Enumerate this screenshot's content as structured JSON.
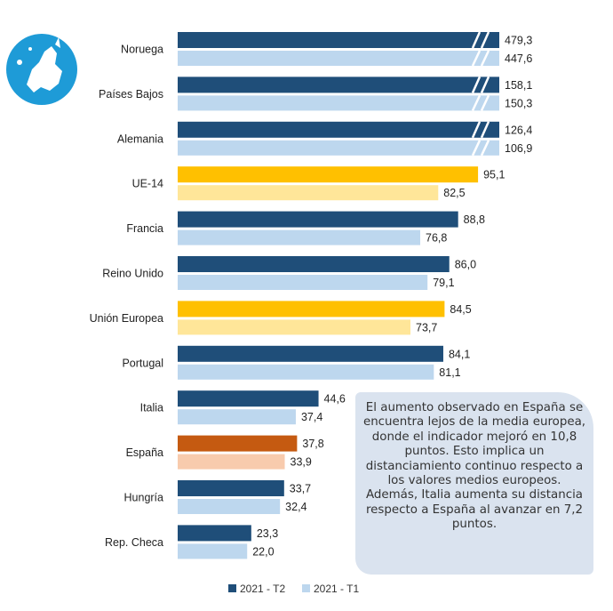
{
  "chart_data": {
    "type": "bar",
    "orientation": "horizontal",
    "categories": [
      "Noruega",
      "Países Bajos",
      "Alemania",
      "UE-14",
      "Francia",
      "Reino Unido",
      "Unión Europea",
      "Portugal",
      "Italia",
      "España",
      "Hungría",
      "Rep. Checa"
    ],
    "series": [
      {
        "name": "2021 - T2",
        "values": [
          479.3,
          158.1,
          126.4,
          95.1,
          88.8,
          86.0,
          84.5,
          84.1,
          44.6,
          37.8,
          33.7,
          23.3
        ],
        "labels": [
          "479,3",
          "158,1",
          "126,4",
          "95,1",
          "88,8",
          "86,0",
          "84,5",
          "84,1",
          "44,6",
          "37,8",
          "33,7",
          "23,3"
        ]
      },
      {
        "name": "2021 - T1",
        "values": [
          447.6,
          150.3,
          106.9,
          82.5,
          76.8,
          79.1,
          73.7,
          81.1,
          37.4,
          33.9,
          32.4,
          22.0
        ],
        "labels": [
          "447,6",
          "150,3",
          "106,9",
          "82,5",
          "76,8",
          "79,1",
          "73,7",
          "81,1",
          "37,4",
          "33,9",
          "32,4",
          "22,0"
        ]
      }
    ],
    "broken_axis_categories": [
      "Noruega",
      "Países Bajos",
      "Alemania"
    ],
    "legend": "bottom",
    "grid": false,
    "colors": {
      "t2": "#1f4e79",
      "t1": "#bdd7ee",
      "highlight_t2": "#ffc000",
      "highlight_t1": "#ffe699",
      "spain_t2": "#c55a11",
      "spain_t1": "#f8cbad"
    },
    "highlight_categories": [
      "UE-14",
      "Unión Europea"
    ],
    "spain_category": "España"
  },
  "note": "El aumento observado en España se encuentra lejos de la media europea, donde el indicador mejoró en 10,8 puntos. Esto implica un distanciamiento continuo respecto a los valores medios europeos. Además, Italia aumenta su distancia respecto a España al avanzar en 7,2 puntos.",
  "icon": "europe-map-icon"
}
